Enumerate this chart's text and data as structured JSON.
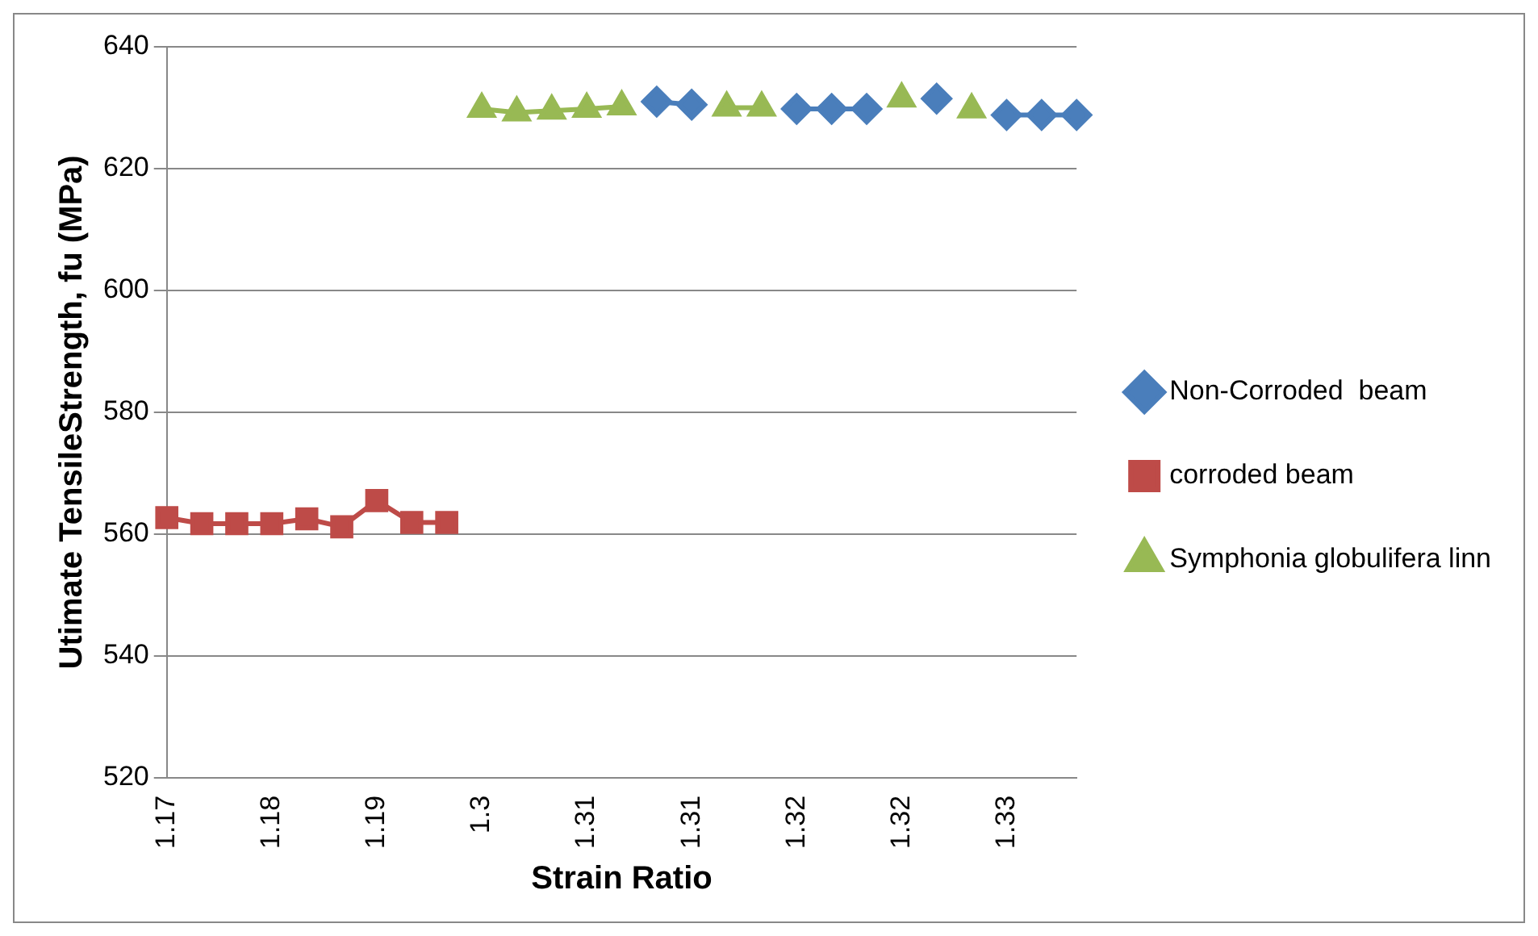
{
  "chart_data": {
    "type": "line",
    "xlabel": "Strain Ratio",
    "ylabel": "Utimate TensileStrength, fu (MPa)",
    "categories": [
      "1.17",
      null,
      null,
      "1.18",
      null,
      null,
      "1.19",
      null,
      null,
      "1.3",
      null,
      null,
      "1.31",
      null,
      null,
      "1.31",
      null,
      null,
      "1.32",
      null,
      null,
      "1.32",
      null,
      null,
      "1.33",
      null,
      null
    ],
    "series": [
      {
        "name": "Non-Corroded  beam",
        "color": "#4a7ebb",
        "marker": "diamond",
        "values": [
          null,
          null,
          null,
          null,
          null,
          null,
          null,
          null,
          null,
          null,
          null,
          null,
          null,
          null,
          631,
          630.5,
          null,
          null,
          629.8,
          629.8,
          629.8,
          null,
          631.5,
          null,
          628.8,
          628.8,
          628.8
        ]
      },
      {
        "name": "corroded beam",
        "color": "#be4b48",
        "marker": "square",
        "values": [
          562.7,
          561.7,
          561.7,
          561.7,
          562.5,
          561.2,
          565.5,
          561.9,
          561.9,
          null,
          null,
          null,
          null,
          null,
          null,
          null,
          null,
          null,
          null,
          null,
          null,
          null,
          null,
          null,
          null,
          null,
          null
        ]
      },
      {
        "name": "Symphonia globulifera linn",
        "color": "#98b954",
        "marker": "triangle",
        "values": [
          null,
          null,
          null,
          null,
          null,
          null,
          null,
          null,
          null,
          629.8,
          629.2,
          629.5,
          629.8,
          630.2,
          null,
          null,
          630,
          630,
          null,
          null,
          null,
          631.5,
          null,
          629.7,
          null,
          null,
          null
        ]
      }
    ],
    "ylim": [
      520,
      640
    ],
    "yticks": [
      520,
      540,
      560,
      580,
      600,
      620,
      640
    ],
    "grid": "y",
    "legend": "right"
  }
}
